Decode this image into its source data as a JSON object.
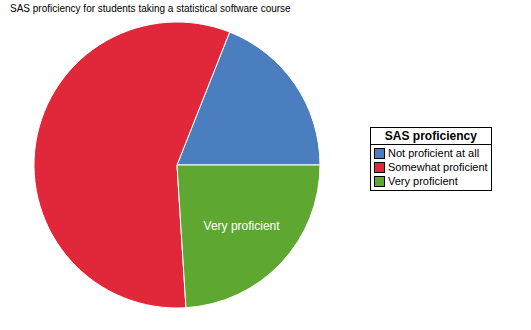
{
  "chart_data": {
    "type": "pie",
    "title": "SAS proficiency for students taking a statistical software course",
    "categories": [
      "Not proficient at all",
      "Somewhat proficient",
      "Very proficient"
    ],
    "values": [
      19,
      57,
      24
    ],
    "colors": [
      "#4a7ebf",
      "#e0283a",
      "#5ea832"
    ],
    "annotations": [
      "Very proficient"
    ],
    "legend": "right",
    "legend_title": "SAS proficiency"
  }
}
